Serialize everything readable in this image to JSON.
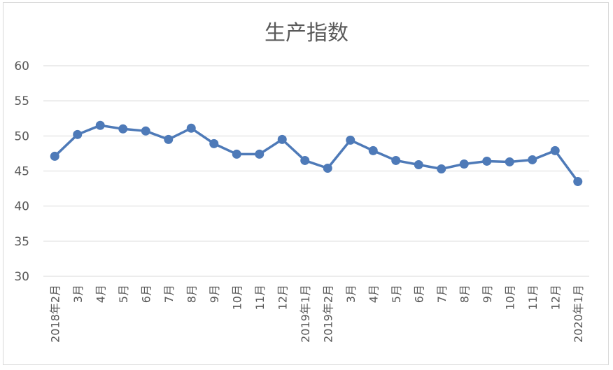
{
  "chart_data": {
    "type": "line",
    "title": "生产指数",
    "xlabel": "",
    "ylabel": "",
    "ylim": [
      30,
      60
    ],
    "yticks": [
      30,
      35,
      40,
      45,
      50,
      55,
      60
    ],
    "grid": true,
    "legend": "none",
    "categories": [
      "2018年2月",
      "3月",
      "4月",
      "5月",
      "6月",
      "7月",
      "8月",
      "9月",
      "10月",
      "11月",
      "12月",
      "2019年1月",
      "2019年2月",
      "3月",
      "4月",
      "5月",
      "6月",
      "7月",
      "8月",
      "9月",
      "10月",
      "11月",
      "12月",
      "2020年1月"
    ],
    "values": [
      47.1,
      50.2,
      51.5,
      51.0,
      50.7,
      49.5,
      51.1,
      48.9,
      47.4,
      47.4,
      49.5,
      46.5,
      45.4,
      49.4,
      47.9,
      46.5,
      45.9,
      45.3,
      46.0,
      46.4,
      46.3,
      46.6,
      47.9,
      43.5
    ],
    "colors": {
      "line": "#4e7ab8",
      "marker": "#4e7ab8",
      "grid": "#d9d9d9"
    }
  }
}
